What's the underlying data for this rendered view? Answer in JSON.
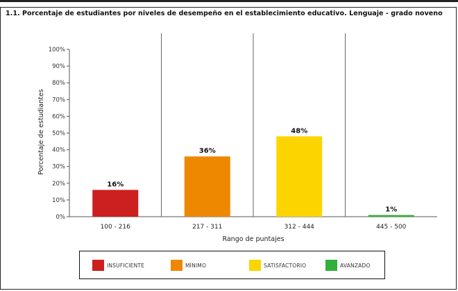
{
  "title": "1.1. Porcentaje de estudiantes por niveles de desempeño en el establecimiento educativo. Lenguaje - grado noveno",
  "chart_data": {
    "type": "bar",
    "categories": [
      "100 - 216",
      "217 - 311",
      "312 - 444",
      "445 - 500"
    ],
    "values": [
      16,
      36,
      48,
      1
    ],
    "value_labels": [
      "16%",
      "36%",
      "48%",
      "1%"
    ],
    "colors": [
      "#cc1f1f",
      "#ee8800",
      "#fcd500",
      "#33b03a"
    ],
    "xlabel": "Rango de puntajes",
    "ylabel": "Porcentaje de estudiantes",
    "ylim": [
      0,
      100
    ],
    "yticks": [
      "0%",
      "10%",
      "20%",
      "30%",
      "40%",
      "50%",
      "60%",
      "70%",
      "80%",
      "90%",
      "100%"
    ],
    "grid": false,
    "legend": [
      {
        "label": "INSUFICIENTE",
        "color": "#cc1f1f"
      },
      {
        "label": "MÍNIMO",
        "color": "#ee8800"
      },
      {
        "label": "SATISFACTORIO",
        "color": "#fcd500"
      },
      {
        "label": "AVANZADO",
        "color": "#33b03a"
      }
    ],
    "legend_position": "bottom"
  }
}
